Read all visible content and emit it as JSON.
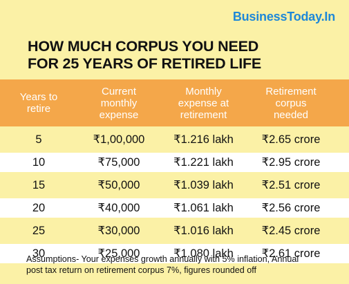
{
  "brand": "BusinessToday.In",
  "title_line1": "HOW MUCH CORPUS YOU NEED",
  "title_line2": "FOR 25 YEARS OF RETIRED LIFE",
  "colors": {
    "header_bg": "#f4a74a",
    "card_bg": "#fbf1a6",
    "brand": "#1e88d8"
  },
  "chart_data": {
    "type": "table",
    "columns": [
      [
        "Years to",
        "retire"
      ],
      [
        "Current",
        "monthly",
        "expense"
      ],
      [
        "Monthly",
        "expense at",
        "retirement"
      ],
      [
        "Retirement",
        "corpus",
        "needed"
      ]
    ],
    "rows": [
      [
        "5",
        "₹1,00,000",
        "₹1.216 lakh",
        "₹2.65 crore"
      ],
      [
        "10",
        "₹75,000",
        "₹1.221 lakh",
        "₹2.95 crore"
      ],
      [
        "15",
        "₹50,000",
        "₹1.039 lakh",
        "₹2.51 crore"
      ],
      [
        "20",
        "₹40,000",
        "₹1.061 lakh",
        "₹2.56 crore"
      ],
      [
        "25",
        "₹30,000",
        "₹1.016 lakh",
        "₹2.45 crore"
      ],
      [
        "30",
        "₹25,000",
        "₹1.080 lakh",
        "₹2.61 crore"
      ]
    ]
  },
  "note_line1": "Assumptions- Your expenses growth annually with 5% inflation, Annual",
  "note_line2": "post tax return on retirement corpus 7%, figures rounded off"
}
